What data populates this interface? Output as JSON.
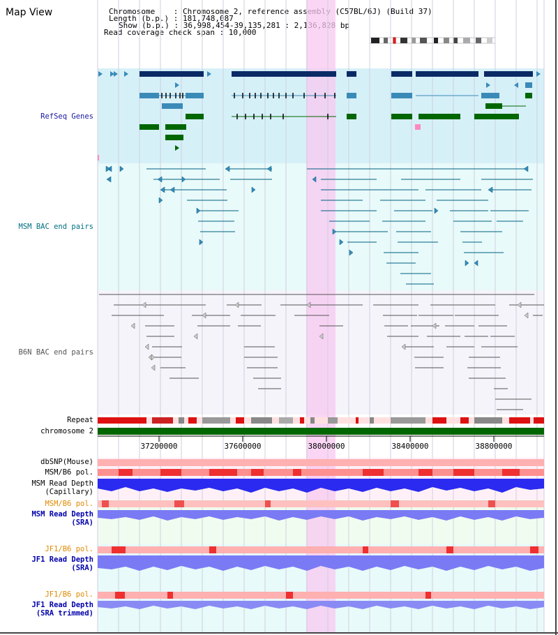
{
  "view_title": "Map View",
  "info": {
    "chromosome": "Chromosome    : Chromosome 2, reference assembly (C57BL/6J) (Build 37)",
    "length": "Length (b.p.) : 181,748,087",
    "show": "Show (b.p.) : 36,998,454-39,135,281 : 2,136,828 bp",
    "coverage": "Read coverage check span : 10,000"
  },
  "tracks": {
    "refseq": "RefSeq Genes",
    "msm_bac": "MSM BAC end pairs",
    "b6n_bac": "B6N BAC end pairs",
    "repeat": "Repeat",
    "chromosome": "chromosome 2",
    "dbsnp": "dbSNP(Mouse)",
    "msm_b6_pol": "MSM/B6 pol.",
    "msm_read_depth_cap_1": "MSM Read Depth",
    "msm_read_depth_cap_2": "(Capillary)",
    "msm_b6_pol_2": "MSM/B6 pol.",
    "msm_read_depth_sra_1": "MSM Read Depth",
    "msm_read_depth_sra_2": "(SRA)",
    "jf1_b6_pol": "JF1/B6 pol.",
    "jf1_read_depth_sra_1": "JF1 Read Depth",
    "jf1_read_depth_sra_2": "(SRA)",
    "jf1_b6_pol_2": "JF1/B6 pol.",
    "jf1_read_depth_trim_1": "JF1 Read Depth",
    "jf1_read_depth_trim_2": "(SRA trimmed)"
  },
  "axis": {
    "ticks": [
      "37200000",
      "37600000",
      "38000000",
      "38400000",
      "38800000"
    ]
  },
  "colors": {
    "refseq_label": "#1a1aa0",
    "msm_label": "#007080",
    "b6n_label": "#555555",
    "orange_label": "#e08a00",
    "blue_label": "#0000aa",
    "highlight": "#f8c8f0",
    "refseq_bg": "#d6f0f8",
    "msm_bg": "#e8fafa",
    "b6n_bg": "#f4f4fa",
    "gene_dark": "#0a2a66",
    "gene_mid": "#3a8ab8",
    "gene_green": "#006600",
    "chromosome_bar": "#006600"
  }
}
